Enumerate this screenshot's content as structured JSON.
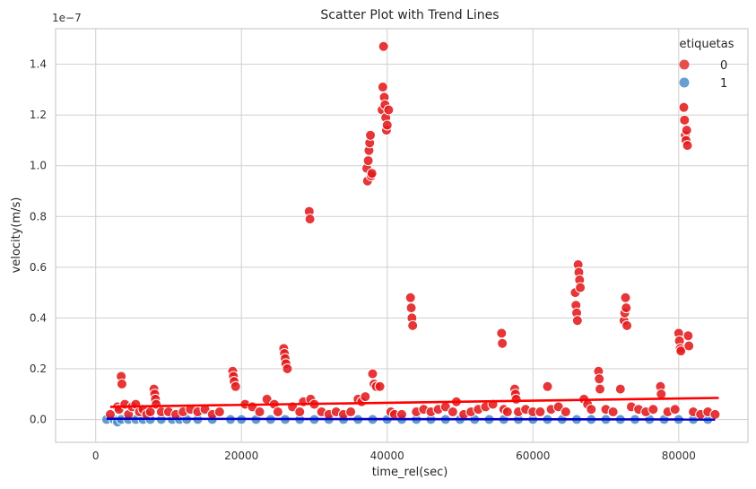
{
  "chart_data": {
    "type": "scatter",
    "title": "Scatter Plot with Trend Lines",
    "xlabel": "time_rel(sec)",
    "ylabel": "velocity(m/s)",
    "y_offset_text": "1e−7",
    "xlim": [
      -5500,
      89500
    ],
    "ylim": [
      -0.09,
      1.54
    ],
    "y_scale_factor": 1e-07,
    "x_ticks": [
      0,
      20000,
      40000,
      60000,
      80000
    ],
    "x_tick_labels": [
      "0",
      "20000",
      "40000",
      "60000",
      "80000"
    ],
    "y_ticks": [
      0.0,
      0.2,
      0.4,
      0.6,
      0.8,
      1.0,
      1.2,
      1.4
    ],
    "y_tick_labels": [
      "0.0",
      "0.2",
      "0.4",
      "0.6",
      "0.8",
      "1.0",
      "1.2",
      "1.4"
    ],
    "grid": true,
    "legend": {
      "title": "etiquetas",
      "placement": "top-right"
    },
    "series": [
      {
        "name": "0",
        "color": "#e31a1c",
        "points": [
          [
            2000,
            0.02
          ],
          [
            3000,
            0.05
          ],
          [
            3200,
            0.04
          ],
          [
            3500,
            0.17
          ],
          [
            3600,
            0.14
          ],
          [
            4000,
            0.06
          ],
          [
            4500,
            0.02
          ],
          [
            5000,
            0.05
          ],
          [
            5500,
            0.06
          ],
          [
            6000,
            0.03
          ],
          [
            6500,
            0.04
          ],
          [
            7000,
            0.02
          ],
          [
            7500,
            0.03
          ],
          [
            8000,
            0.12
          ],
          [
            8100,
            0.1
          ],
          [
            8200,
            0.08
          ],
          [
            8300,
            0.06
          ],
          [
            9000,
            0.03
          ],
          [
            10000,
            0.03
          ],
          [
            11000,
            0.02
          ],
          [
            12000,
            0.03
          ],
          [
            13000,
            0.04
          ],
          [
            14000,
            0.03
          ],
          [
            15000,
            0.04
          ],
          [
            16000,
            0.02
          ],
          [
            17000,
            0.03
          ],
          [
            18800,
            0.19
          ],
          [
            18900,
            0.17
          ],
          [
            19000,
            0.15
          ],
          [
            19200,
            0.13
          ],
          [
            20500,
            0.06
          ],
          [
            21500,
            0.05
          ],
          [
            22500,
            0.03
          ],
          [
            23500,
            0.08
          ],
          [
            24500,
            0.06
          ],
          [
            25000,
            0.03
          ],
          [
            25800,
            0.28
          ],
          [
            25900,
            0.26
          ],
          [
            26000,
            0.24
          ],
          [
            26100,
            0.22
          ],
          [
            26300,
            0.2
          ],
          [
            27000,
            0.05
          ],
          [
            28000,
            0.03
          ],
          [
            28500,
            0.07
          ],
          [
            29300,
            0.82
          ],
          [
            29400,
            0.79
          ],
          [
            29500,
            0.08
          ],
          [
            30000,
            0.06
          ],
          [
            31000,
            0.03
          ],
          [
            32000,
            0.02
          ],
          [
            33000,
            0.03
          ],
          [
            34000,
            0.02
          ],
          [
            35000,
            0.03
          ],
          [
            36000,
            0.08
          ],
          [
            36500,
            0.07
          ],
          [
            37000,
            0.09
          ],
          [
            37200,
            0.99
          ],
          [
            37300,
            0.94
          ],
          [
            37400,
            1.02
          ],
          [
            37500,
            1.06
          ],
          [
            37600,
            1.09
          ],
          [
            37700,
            1.12
          ],
          [
            37800,
            0.96
          ],
          [
            37900,
            0.97
          ],
          [
            38000,
            0.18
          ],
          [
            38200,
            0.14
          ],
          [
            38500,
            0.13
          ],
          [
            39000,
            0.13
          ],
          [
            39300,
            1.22
          ],
          [
            39400,
            1.31
          ],
          [
            39500,
            1.47
          ],
          [
            39600,
            1.27
          ],
          [
            39700,
            1.24
          ],
          [
            39800,
            1.19
          ],
          [
            39900,
            1.14
          ],
          [
            40000,
            1.16
          ],
          [
            40200,
            1.22
          ],
          [
            40500,
            0.03
          ],
          [
            41000,
            0.02
          ],
          [
            42000,
            0.02
          ],
          [
            43200,
            0.48
          ],
          [
            43300,
            0.44
          ],
          [
            43400,
            0.4
          ],
          [
            43500,
            0.37
          ],
          [
            44000,
            0.03
          ],
          [
            45000,
            0.04
          ],
          [
            46000,
            0.03
          ],
          [
            47000,
            0.04
          ],
          [
            48000,
            0.05
          ],
          [
            49000,
            0.03
          ],
          [
            49500,
            0.07
          ],
          [
            50500,
            0.02
          ],
          [
            51500,
            0.03
          ],
          [
            52500,
            0.04
          ],
          [
            53500,
            0.05
          ],
          [
            54500,
            0.06
          ],
          [
            55700,
            0.34
          ],
          [
            55800,
            0.3
          ],
          [
            56000,
            0.04
          ],
          [
            56500,
            0.03
          ],
          [
            57500,
            0.12
          ],
          [
            57600,
            0.1
          ],
          [
            57700,
            0.08
          ],
          [
            58000,
            0.03
          ],
          [
            59000,
            0.04
          ],
          [
            60000,
            0.03
          ],
          [
            61000,
            0.03
          ],
          [
            62000,
            0.13
          ],
          [
            62500,
            0.04
          ],
          [
            63500,
            0.05
          ],
          [
            64500,
            0.03
          ],
          [
            65800,
            0.5
          ],
          [
            65900,
            0.45
          ],
          [
            66000,
            0.42
          ],
          [
            66100,
            0.39
          ],
          [
            66200,
            0.61
          ],
          [
            66300,
            0.58
          ],
          [
            66400,
            0.55
          ],
          [
            66500,
            0.52
          ],
          [
            67000,
            0.08
          ],
          [
            67500,
            0.06
          ],
          [
            68000,
            0.04
          ],
          [
            69000,
            0.19
          ],
          [
            69100,
            0.16
          ],
          [
            69200,
            0.12
          ],
          [
            70000,
            0.04
          ],
          [
            71000,
            0.03
          ],
          [
            72000,
            0.12
          ],
          [
            72500,
            0.39
          ],
          [
            72600,
            0.42
          ],
          [
            72700,
            0.48
          ],
          [
            72800,
            0.44
          ],
          [
            72900,
            0.37
          ],
          [
            73500,
            0.05
          ],
          [
            74500,
            0.04
          ],
          [
            75500,
            0.03
          ],
          [
            76500,
            0.04
          ],
          [
            77500,
            0.13
          ],
          [
            77600,
            0.1
          ],
          [
            78500,
            0.03
          ],
          [
            79500,
            0.04
          ],
          [
            80000,
            0.34
          ],
          [
            80100,
            0.31
          ],
          [
            80200,
            0.28
          ],
          [
            80300,
            0.27
          ],
          [
            80700,
            1.23
          ],
          [
            80800,
            1.18
          ],
          [
            80900,
            1.12
          ],
          [
            81000,
            1.1
          ],
          [
            81100,
            1.14
          ],
          [
            81200,
            1.08
          ],
          [
            81300,
            0.33
          ],
          [
            81400,
            0.29
          ],
          [
            82000,
            0.03
          ],
          [
            83000,
            0.02
          ],
          [
            84000,
            0.03
          ],
          [
            85000,
            0.02
          ]
        ],
        "trend": [
          [
            2000,
            0.05
          ],
          [
            85500,
            0.085
          ]
        ]
      },
      {
        "name": "1",
        "color": "#4c8cc4",
        "points": [
          [
            1500,
            0.0
          ],
          [
            2500,
            0.0
          ],
          [
            3000,
            -0.01
          ],
          [
            3500,
            0.0
          ],
          [
            4500,
            0.0
          ],
          [
            5500,
            0.0
          ],
          [
            6500,
            0.0
          ],
          [
            7500,
            0.0
          ],
          [
            9000,
            0.0
          ],
          [
            10500,
            0.0
          ],
          [
            11500,
            0.0
          ],
          [
            12500,
            0.0
          ],
          [
            14000,
            0.0
          ],
          [
            16000,
            0.0
          ],
          [
            18500,
            0.0
          ],
          [
            20000,
            0.0
          ],
          [
            22000,
            0.0
          ],
          [
            24000,
            0.0
          ],
          [
            26000,
            0.0
          ],
          [
            28000,
            0.0
          ],
          [
            30000,
            0.0
          ],
          [
            32000,
            0.0
          ],
          [
            34000,
            0.0
          ],
          [
            36000,
            0.0
          ],
          [
            38000,
            0.0
          ],
          [
            40000,
            0.0
          ],
          [
            42000,
            0.0
          ],
          [
            44000,
            0.0
          ],
          [
            46000,
            0.0
          ],
          [
            48000,
            0.0
          ],
          [
            50000,
            0.0
          ],
          [
            52000,
            0.0
          ],
          [
            54000,
            0.0
          ],
          [
            56000,
            0.0
          ],
          [
            58000,
            0.0
          ],
          [
            60000,
            0.0
          ],
          [
            62000,
            0.0
          ],
          [
            64000,
            0.0
          ],
          [
            66000,
            0.0
          ],
          [
            68000,
            0.0
          ],
          [
            70000,
            0.0
          ],
          [
            72000,
            0.0
          ],
          [
            74000,
            0.0
          ],
          [
            76000,
            0.0
          ],
          [
            78000,
            0.0
          ],
          [
            80000,
            0.0
          ],
          [
            82000,
            0.0
          ],
          [
            84000,
            0.0
          ]
        ],
        "trend": [
          [
            1500,
            0.003
          ],
          [
            85000,
            0.0
          ]
        ]
      }
    ],
    "trend_colors": {
      "0": "#ff0000",
      "1": "#0000cc"
    }
  }
}
